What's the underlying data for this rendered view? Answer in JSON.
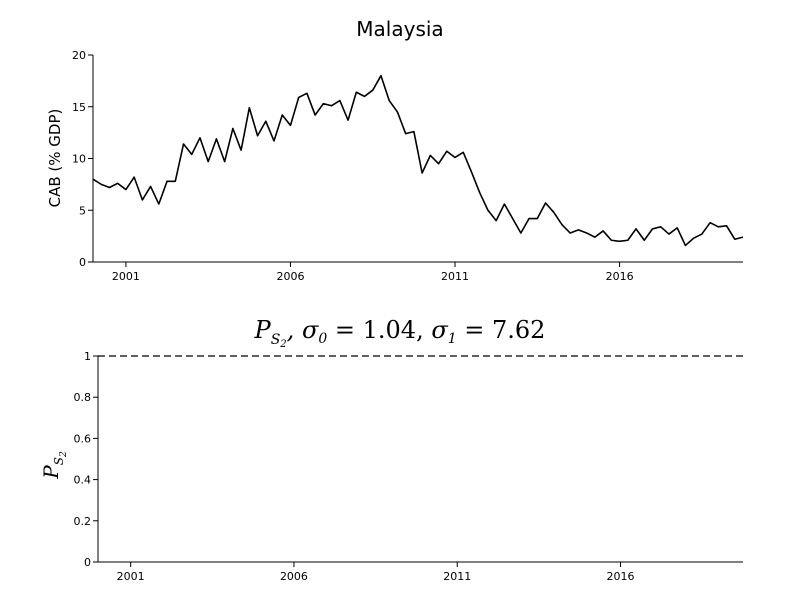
{
  "chart_data": [
    {
      "type": "line",
      "title": "Malaysia",
      "xlabel": "",
      "ylabel": "CAB (% GDP)",
      "xlim": [
        2000.0,
        2019.75
      ],
      "ylim": [
        0,
        20
      ],
      "xticks": [
        2001,
        2006,
        2011,
        2016
      ],
      "yticks": [
        0,
        5,
        10,
        15,
        20
      ],
      "grid": false,
      "series": [
        {
          "x": [
            2000.0,
            2000.25,
            2000.5,
            2000.75,
            2001.0,
            2001.25,
            2001.5,
            2001.75,
            2002.0,
            2002.25,
            2002.5,
            2002.75,
            2003.0,
            2003.25,
            2003.5,
            2003.75,
            2004.0,
            2004.25,
            2004.5,
            2004.75,
            2005.0,
            2005.25,
            2005.5,
            2005.75,
            2006.0,
            2006.25,
            2006.5,
            2006.75,
            2007.0,
            2007.25,
            2007.5,
            2007.75,
            2008.0,
            2008.25,
            2008.5,
            2008.75,
            2009.0,
            2009.25,
            2009.5,
            2009.75,
            2010.0,
            2010.25,
            2010.5,
            2010.75,
            2011.0,
            2011.25,
            2011.5,
            2011.75,
            2012.0,
            2012.25,
            2012.5,
            2012.75,
            2013.0,
            2013.25,
            2013.5,
            2013.75,
            2014.0,
            2014.25,
            2014.5,
            2014.75,
            2015.0,
            2015.25,
            2015.5,
            2015.75,
            2016.0,
            2016.25,
            2016.5,
            2016.75,
            2017.0,
            2017.25,
            2017.5,
            2017.75,
            2018.0,
            2018.25,
            2018.5,
            2018.75,
            2019.0,
            2019.25,
            2019.5,
            2019.75
          ],
          "values": [
            8.0,
            7.5,
            7.2,
            7.6,
            7.0,
            8.2,
            6.0,
            7.3,
            5.6,
            7.8,
            7.8,
            11.4,
            10.4,
            12.0,
            9.7,
            11.9,
            9.7,
            12.9,
            10.8,
            14.9,
            12.2,
            13.6,
            11.7,
            14.2,
            13.2,
            15.9,
            16.3,
            14.2,
            15.3,
            15.1,
            15.6,
            13.7,
            16.4,
            16.0,
            16.6,
            18.0,
            15.6,
            14.5,
            12.4,
            12.6,
            8.6,
            10.3,
            9.5,
            10.7,
            10.1,
            10.6,
            8.7,
            6.7,
            5.0,
            4.0,
            5.6,
            4.2,
            2.8,
            4.2,
            4.2,
            5.7,
            4.8,
            3.6,
            2.8,
            3.1,
            2.8,
            2.4,
            3.0,
            2.1,
            2.0,
            2.1,
            3.2,
            2.1,
            3.2,
            3.4,
            2.7,
            3.3,
            1.6,
            2.3,
            2.7,
            3.8,
            3.4,
            3.5,
            2.2,
            2.4
          ]
        }
      ]
    },
    {
      "type": "line",
      "title": "P_{S_2}, σ_0 = 1.04, σ_1 = 7.62",
      "title_parts": {
        "p": "P",
        "sub1": "S",
        "sub2": "2",
        "sigma0_label": "σ",
        "sigma0_sub": "0",
        "sigma0_value": "1.04",
        "sigma1_label": "σ",
        "sigma1_sub": "1",
        "sigma1_value": "7.62",
        "eq": "="
      },
      "xlabel": "",
      "ylabel": "P_{S_2}",
      "xlim": [
        2000.0,
        2019.75
      ],
      "ylim": [
        0,
        1
      ],
      "xticks": [
        2001,
        2006,
        2011,
        2016
      ],
      "yticks": [
        0,
        0.2,
        0.4,
        0.6,
        0.8,
        1
      ],
      "grid": false,
      "series": [
        {
          "style": "dashed",
          "x": [
            2000.0,
            2019.75
          ],
          "values": [
            1,
            1
          ]
        }
      ]
    }
  ]
}
